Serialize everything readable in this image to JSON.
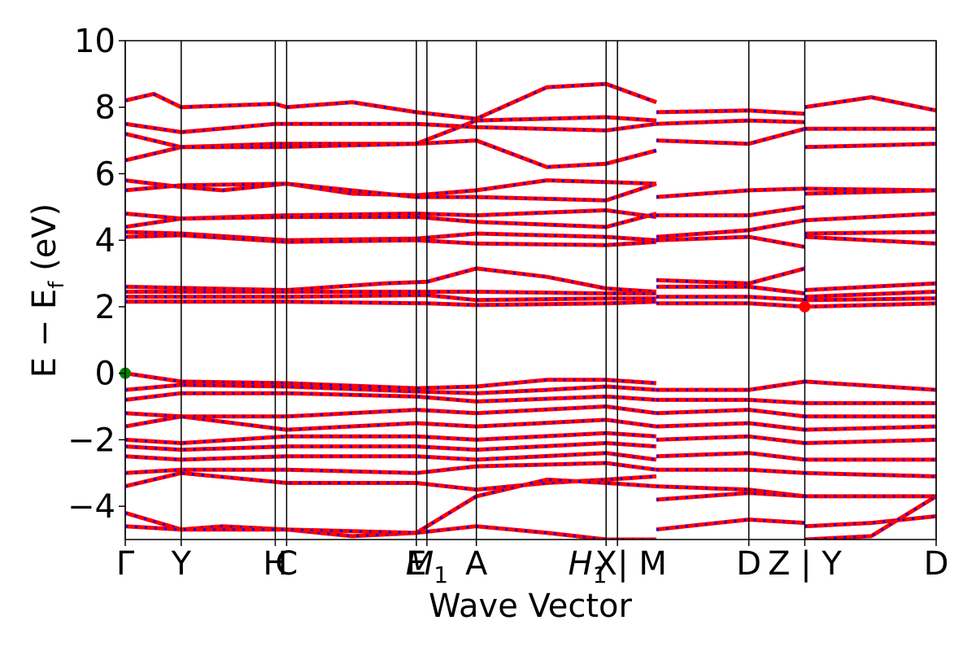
{
  "chart_data": {
    "type": "line",
    "title": "",
    "xlabel": "Wave Vector",
    "ylabel": "E − E_f (eV)",
    "ylabel_parts": {
      "main": "E − E",
      "sub": "f",
      "unit": "(eV)"
    },
    "ylim": [
      -5,
      10
    ],
    "yticks": [
      -4,
      -2,
      0,
      2,
      4,
      6,
      8,
      10
    ],
    "ytick_labels": [
      "−4",
      "−2",
      "0",
      "2",
      "4",
      "6",
      "8",
      "10"
    ],
    "xlim": [
      0,
      1.0
    ],
    "kpoint_labels": [
      {
        "x": 0.0,
        "label": "Γ"
      },
      {
        "x": 0.069,
        "label": "Y"
      },
      {
        "x": 0.185,
        "label": "H"
      },
      {
        "x": 0.199,
        "label": "C"
      },
      {
        "x": 0.359,
        "label": "E"
      },
      {
        "x": 0.372,
        "label": "M",
        "sub": "1"
      },
      {
        "x": 0.433,
        "label": "A"
      },
      {
        "x": 0.593,
        "label": "X"
      },
      {
        "x": 0.607,
        "label": "H",
        "sub": "1",
        "suffix": " | M"
      },
      {
        "x": 0.769,
        "label": "D"
      },
      {
        "x": 0.838,
        "label": "Z | Y"
      },
      {
        "x": 1.0,
        "label": "D"
      }
    ],
    "band_color": "#ff0000",
    "dot_color": "#0000ff",
    "bands": [
      [
        [
          0,
          8.2
        ],
        [
          0.035,
          8.4
        ],
        [
          0.069,
          8.0
        ],
        [
          0.185,
          8.1
        ],
        [
          0.199,
          8.0
        ],
        [
          0.28,
          8.15
        ],
        [
          0.359,
          7.85
        ],
        [
          0.433,
          7.65
        ],
        [
          0.52,
          8.6
        ],
        [
          0.593,
          8.7
        ],
        [
          0.655,
          8.15
        ]
      ],
      [
        [
          0,
          7.5
        ],
        [
          0.069,
          7.25
        ],
        [
          0.185,
          7.5
        ],
        [
          0.359,
          7.5
        ],
        [
          0.433,
          7.4
        ],
        [
          0.593,
          7.3
        ],
        [
          0.655,
          7.5
        ]
      ],
      [
        [
          0,
          7.2
        ],
        [
          0.069,
          6.8
        ],
        [
          0.185,
          6.9
        ],
        [
          0.359,
          6.9
        ],
        [
          0.433,
          7.0
        ],
        [
          0.52,
          6.2
        ],
        [
          0.593,
          6.3
        ],
        [
          0.655,
          6.7
        ]
      ],
      [
        [
          0,
          6.4
        ],
        [
          0.069,
          6.8
        ],
        [
          0.185,
          6.8
        ],
        [
          0.359,
          6.9
        ],
        [
          0.433,
          7.6
        ],
        [
          0.593,
          7.7
        ],
        [
          0.655,
          7.6
        ]
      ],
      [
        [
          0,
          5.8
        ],
        [
          0.069,
          5.6
        ],
        [
          0.12,
          5.5
        ],
        [
          0.199,
          5.7
        ],
        [
          0.28,
          5.4
        ],
        [
          0.359,
          5.35
        ],
        [
          0.433,
          5.5
        ],
        [
          0.52,
          5.8
        ],
        [
          0.593,
          5.75
        ],
        [
          0.655,
          5.7
        ]
      ],
      [
        [
          0,
          5.5
        ],
        [
          0.069,
          5.65
        ],
        [
          0.199,
          5.7
        ],
        [
          0.359,
          5.3
        ],
        [
          0.433,
          5.3
        ],
        [
          0.593,
          5.2
        ],
        [
          0.655,
          5.7
        ]
      ],
      [
        [
          0,
          4.8
        ],
        [
          0.069,
          4.65
        ],
        [
          0.199,
          4.75
        ],
        [
          0.359,
          4.8
        ],
        [
          0.433,
          4.75
        ],
        [
          0.593,
          4.9
        ],
        [
          0.655,
          4.7
        ]
      ],
      [
        [
          0,
          4.4
        ],
        [
          0.069,
          4.65
        ],
        [
          0.199,
          4.7
        ],
        [
          0.359,
          4.7
        ],
        [
          0.433,
          4.55
        ],
        [
          0.593,
          4.4
        ],
        [
          0.655,
          4.8
        ]
      ],
      [
        [
          0,
          4.25
        ],
        [
          0.069,
          4.2
        ],
        [
          0.199,
          4.0
        ],
        [
          0.359,
          4.05
        ],
        [
          0.433,
          4.2
        ],
        [
          0.593,
          4.1
        ],
        [
          0.655,
          4.0
        ]
      ],
      [
        [
          0,
          4.1
        ],
        [
          0.069,
          4.15
        ],
        [
          0.199,
          3.95
        ],
        [
          0.359,
          4.0
        ],
        [
          0.433,
          3.9
        ],
        [
          0.593,
          3.85
        ],
        [
          0.655,
          3.95
        ]
      ],
      [
        [
          0,
          2.6
        ],
        [
          0.199,
          2.5
        ],
        [
          0.32,
          2.7
        ],
        [
          0.372,
          2.75
        ],
        [
          0.433,
          3.15
        ],
        [
          0.52,
          2.9
        ],
        [
          0.593,
          2.55
        ],
        [
          0.655,
          2.45
        ]
      ],
      [
        [
          0,
          2.45
        ],
        [
          0.199,
          2.45
        ],
        [
          0.372,
          2.45
        ],
        [
          0.433,
          2.45
        ],
        [
          0.593,
          2.4
        ],
        [
          0.655,
          2.4
        ]
      ],
      [
        [
          0,
          2.3
        ],
        [
          0.199,
          2.3
        ],
        [
          0.372,
          2.35
        ],
        [
          0.433,
          2.2
        ],
        [
          0.593,
          2.25
        ],
        [
          0.655,
          2.25
        ]
      ],
      [
        [
          0,
          2.15
        ],
        [
          0.199,
          2.15
        ],
        [
          0.372,
          2.1
        ],
        [
          0.433,
          2.05
        ],
        [
          0.593,
          2.1
        ],
        [
          0.655,
          2.15
        ]
      ],
      [
        [
          0,
          0.0
        ],
        [
          0.069,
          -0.25
        ],
        [
          0.199,
          -0.3
        ],
        [
          0.359,
          -0.45
        ],
        [
          0.433,
          -0.4
        ],
        [
          0.52,
          -0.2
        ],
        [
          0.593,
          -0.2
        ],
        [
          0.655,
          -0.3
        ]
      ],
      [
        [
          0,
          -0.5
        ],
        [
          0.069,
          -0.35
        ],
        [
          0.199,
          -0.4
        ],
        [
          0.359,
          -0.55
        ],
        [
          0.433,
          -0.6
        ],
        [
          0.52,
          -0.5
        ],
        [
          0.593,
          -0.4
        ],
        [
          0.655,
          -0.5
        ]
      ],
      [
        [
          0,
          -0.8
        ],
        [
          0.069,
          -0.6
        ],
        [
          0.199,
          -0.6
        ],
        [
          0.359,
          -0.7
        ],
        [
          0.433,
          -0.85
        ],
        [
          0.593,
          -0.7
        ],
        [
          0.655,
          -0.8
        ]
      ],
      [
        [
          0,
          -1.2
        ],
        [
          0.069,
          -1.3
        ],
        [
          0.199,
          -1.3
        ],
        [
          0.359,
          -1.1
        ],
        [
          0.433,
          -1.2
        ],
        [
          0.593,
          -1.0
        ],
        [
          0.655,
          -1.2
        ]
      ],
      [
        [
          0,
          -1.6
        ],
        [
          0.069,
          -1.3
        ],
        [
          0.199,
          -1.7
        ],
        [
          0.359,
          -1.5
        ],
        [
          0.433,
          -1.6
        ],
        [
          0.593,
          -1.4
        ],
        [
          0.655,
          -1.6
        ]
      ],
      [
        [
          0,
          -2.0
        ],
        [
          0.069,
          -2.1
        ],
        [
          0.199,
          -1.9
        ],
        [
          0.359,
          -1.9
        ],
        [
          0.433,
          -2.0
        ],
        [
          0.593,
          -1.8
        ],
        [
          0.655,
          -1.9
        ]
      ],
      [
        [
          0,
          -2.2
        ],
        [
          0.069,
          -2.3
        ],
        [
          0.199,
          -2.2
        ],
        [
          0.359,
          -2.2
        ],
        [
          0.433,
          -2.3
        ],
        [
          0.593,
          -2.1
        ],
        [
          0.655,
          -2.2
        ]
      ],
      [
        [
          0,
          -2.5
        ],
        [
          0.069,
          -2.6
        ],
        [
          0.199,
          -2.5
        ],
        [
          0.359,
          -2.5
        ],
        [
          0.433,
          -2.6
        ],
        [
          0.593,
          -2.4
        ],
        [
          0.655,
          -2.6
        ]
      ],
      [
        [
          0,
          -3.0
        ],
        [
          0.069,
          -2.9
        ],
        [
          0.199,
          -2.9
        ],
        [
          0.359,
          -3.0
        ],
        [
          0.433,
          -2.8
        ],
        [
          0.593,
          -2.7
        ],
        [
          0.655,
          -2.9
        ]
      ],
      [
        [
          0,
          -3.4
        ],
        [
          0.069,
          -3.0
        ],
        [
          0.199,
          -3.3
        ],
        [
          0.359,
          -3.3
        ],
        [
          0.433,
          -3.5
        ],
        [
          0.52,
          -3.3
        ],
        [
          0.593,
          -3.2
        ],
        [
          0.655,
          -3.1
        ]
      ],
      [
        [
          0,
          -4.2
        ],
        [
          0.069,
          -4.7
        ],
        [
          0.12,
          -4.6
        ],
        [
          0.199,
          -4.7
        ],
        [
          0.28,
          -4.9
        ],
        [
          0.359,
          -4.8
        ],
        [
          0.433,
          -3.7
        ],
        [
          0.52,
          -3.2
        ],
        [
          0.593,
          -3.3
        ],
        [
          0.655,
          -3.4
        ]
      ],
      [
        [
          0,
          -4.6
        ],
        [
          0.069,
          -4.7
        ],
        [
          0.199,
          -4.7
        ],
        [
          0.359,
          -4.8
        ],
        [
          0.433,
          -4.6
        ],
        [
          0.52,
          -4.8
        ],
        [
          0.593,
          -5.0
        ],
        [
          0.655,
          -5.0
        ]
      ],
      [
        [
          0.655,
          7.85
        ],
        [
          0.769,
          7.9
        ],
        [
          0.838,
          7.8
        ]
      ],
      [
        [
          0.655,
          7.5
        ],
        [
          0.769,
          7.6
        ],
        [
          0.838,
          7.55
        ]
      ],
      [
        [
          0.655,
          7.0
        ],
        [
          0.769,
          6.9
        ],
        [
          0.838,
          7.35
        ]
      ],
      [
        [
          0.655,
          5.3
        ],
        [
          0.769,
          5.5
        ],
        [
          0.838,
          5.55
        ]
      ],
      [
        [
          0.655,
          4.75
        ],
        [
          0.769,
          4.75
        ],
        [
          0.838,
          5.0
        ]
      ],
      [
        [
          0.655,
          4.1
        ],
        [
          0.769,
          4.3
        ],
        [
          0.838,
          4.6
        ]
      ],
      [
        [
          0.655,
          4.0
        ],
        [
          0.769,
          4.1
        ],
        [
          0.838,
          3.8
        ]
      ],
      [
        [
          0.655,
          2.8
        ],
        [
          0.769,
          2.7
        ],
        [
          0.838,
          3.15
        ]
      ],
      [
        [
          0.655,
          2.6
        ],
        [
          0.769,
          2.6
        ],
        [
          0.838,
          2.4
        ]
      ],
      [
        [
          0.655,
          2.3
        ],
        [
          0.769,
          2.3
        ],
        [
          0.838,
          2.2
        ]
      ],
      [
        [
          0.655,
          2.1
        ],
        [
          0.769,
          2.1
        ],
        [
          0.838,
          2.0
        ]
      ],
      [
        [
          0.655,
          -0.5
        ],
        [
          0.769,
          -0.5
        ],
        [
          0.838,
          -0.25
        ]
      ],
      [
        [
          0.655,
          -0.8
        ],
        [
          0.769,
          -0.8
        ],
        [
          0.838,
          -0.9
        ]
      ],
      [
        [
          0.655,
          -1.2
        ],
        [
          0.769,
          -1.1
        ],
        [
          0.838,
          -1.3
        ]
      ],
      [
        [
          0.655,
          -1.6
        ],
        [
          0.769,
          -1.5
        ],
        [
          0.838,
          -1.7
        ]
      ],
      [
        [
          0.655,
          -2.0
        ],
        [
          0.769,
          -1.9
        ],
        [
          0.838,
          -2.1
        ]
      ],
      [
        [
          0.655,
          -2.5
        ],
        [
          0.769,
          -2.4
        ],
        [
          0.838,
          -2.6
        ]
      ],
      [
        [
          0.655,
          -2.9
        ],
        [
          0.769,
          -2.9
        ],
        [
          0.838,
          -3.0
        ]
      ],
      [
        [
          0.655,
          -3.4
        ],
        [
          0.769,
          -3.5
        ],
        [
          0.838,
          -3.7
        ]
      ],
      [
        [
          0.655,
          -3.8
        ],
        [
          0.769,
          -3.6
        ],
        [
          0.838,
          -3.7
        ]
      ],
      [
        [
          0.655,
          -4.7
        ],
        [
          0.769,
          -4.4
        ],
        [
          0.838,
          -4.5
        ]
      ],
      [
        [
          0.838,
          8.0
        ],
        [
          0.92,
          8.3
        ],
        [
          1.0,
          7.9
        ]
      ],
      [
        [
          0.838,
          7.35
        ],
        [
          1.0,
          7.35
        ]
      ],
      [
        [
          0.838,
          6.8
        ],
        [
          0.92,
          6.85
        ],
        [
          1.0,
          6.9
        ]
      ],
      [
        [
          0.838,
          5.55
        ],
        [
          1.0,
          5.5
        ]
      ],
      [
        [
          0.838,
          5.4
        ],
        [
          1.0,
          5.5
        ]
      ],
      [
        [
          0.838,
          4.6
        ],
        [
          1.0,
          4.8
        ]
      ],
      [
        [
          0.838,
          4.2
        ],
        [
          1.0,
          4.25
        ]
      ],
      [
        [
          0.838,
          4.1
        ],
        [
          1.0,
          3.9
        ]
      ],
      [
        [
          0.838,
          2.5
        ],
        [
          1.0,
          2.7
        ]
      ],
      [
        [
          0.838,
          2.3
        ],
        [
          1.0,
          2.45
        ]
      ],
      [
        [
          0.838,
          2.2
        ],
        [
          1.0,
          2.25
        ]
      ],
      [
        [
          0.838,
          2.0
        ],
        [
          1.0,
          2.1
        ]
      ],
      [
        [
          0.838,
          -0.25
        ],
        [
          1.0,
          -0.5
        ]
      ],
      [
        [
          0.838,
          -0.9
        ],
        [
          1.0,
          -0.9
        ]
      ],
      [
        [
          0.838,
          -1.3
        ],
        [
          1.0,
          -1.3
        ]
      ],
      [
        [
          0.838,
          -1.7
        ],
        [
          1.0,
          -1.6
        ]
      ],
      [
        [
          0.838,
          -2.1
        ],
        [
          1.0,
          -2.0
        ]
      ],
      [
        [
          0.838,
          -2.6
        ],
        [
          1.0,
          -2.6
        ]
      ],
      [
        [
          0.838,
          -3.0
        ],
        [
          1.0,
          -3.1
        ]
      ],
      [
        [
          0.838,
          -3.7
        ],
        [
          1.0,
          -3.7
        ]
      ],
      [
        [
          0.838,
          -4.6
        ],
        [
          0.92,
          -4.5
        ],
        [
          1.0,
          -4.3
        ]
      ],
      [
        [
          0.838,
          -5.0
        ],
        [
          0.92,
          -4.9
        ],
        [
          1.0,
          -3.7
        ]
      ]
    ],
    "markers": [
      {
        "label": "VBM",
        "x": 0.0,
        "y": 0.0,
        "color": "#008000"
      },
      {
        "label": "CBM",
        "x": 0.838,
        "y": 2.0,
        "color": "#ff0000"
      }
    ]
  }
}
